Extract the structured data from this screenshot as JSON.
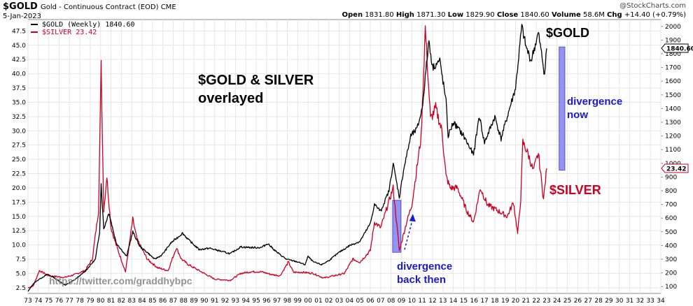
{
  "header": {
    "symbol": "$GOLD",
    "name": "Gold - Continuous Contract (EOD)",
    "exchange": "CME",
    "date": "5-Jan-2023",
    "open_label": "Open",
    "open": "1831.80",
    "high_label": "High",
    "high": "1871.30",
    "low_label": "Low",
    "low": "1829.90",
    "close_label": "Close",
    "close": "1840.60",
    "volume_label": "Volume",
    "volume": "58.6M",
    "chg_label": "Chg",
    "chg": "+14.40 (+0.79%)",
    "logo_text": "@StockCharts.com"
  },
  "legend": {
    "gold": "$GOLD (Weekly) 1840.60",
    "silver": "$SILVER 23.42"
  },
  "annotations": {
    "title_line1": "$GOLD & SILVER",
    "title_line2": "overlayed",
    "gold_tag": "$GOLD",
    "silver_tag": "$SILVER",
    "div_now_1": "divergence",
    "div_now_2": "now",
    "div_then_1": "divergence",
    "div_then_2": "back then",
    "watermark": "https://twitter.com/graddhybpc"
  },
  "colors": {
    "gold": "#000000",
    "silver": "#cc0022",
    "highlight": "#8080ee",
    "annotation_blue": "#1a1acc",
    "grid": "#e6e6e6"
  },
  "chart_data": {
    "type": "line",
    "title": "$GOLD & SILVER overlayed",
    "x_unit": "year",
    "x_ticks": [
      "73",
      "74",
      "75",
      "76",
      "77",
      "78",
      "79",
      "80",
      "81",
      "82",
      "83",
      "84",
      "85",
      "86",
      "87",
      "88",
      "89",
      "90",
      "91",
      "92",
      "93",
      "94",
      "95",
      "96",
      "97",
      "98",
      "99",
      "00",
      "01",
      "02",
      "03",
      "04",
      "05",
      "06",
      "07",
      "08",
      "09",
      "10",
      "11",
      "12",
      "13",
      "14",
      "15",
      "16",
      "17",
      "18",
      "19",
      "20",
      "21",
      "22",
      "23",
      "24",
      "25",
      "26",
      "27",
      "28",
      "29",
      "30",
      "31",
      "32",
      "33",
      "34"
    ],
    "x_range": [
      1973,
      2034
    ],
    "left_axis": {
      "series": "$SILVER",
      "ticks": [
        "2.5",
        "5.0",
        "7.5",
        "10.0",
        "12.5",
        "15.0",
        "17.5",
        "20.0",
        "22.5",
        "25.0",
        "27.5",
        "30.0",
        "32.5",
        "35.0",
        "37.5",
        "40.0",
        "42.5",
        "45.0",
        "47.5"
      ],
      "range": [
        1.5,
        49.5
      ]
    },
    "right_axis": {
      "series": "$GOLD",
      "ticks": [
        "100",
        "200",
        "300",
        "400",
        "500",
        "600",
        "700",
        "800",
        "900",
        "1000",
        "1100",
        "1200",
        "1300",
        "1400",
        "1500",
        "1600",
        "1700",
        "1800",
        "1900",
        "2000"
      ],
      "range": [
        50,
        2050
      ]
    },
    "grid": true,
    "last_values": {
      "gold": "1840.60",
      "silver": "23.42"
    },
    "series": [
      {
        "name": "$GOLD (Weekly)",
        "axis": "right",
        "points": [
          [
            1973.0,
            65
          ],
          [
            1973.5,
            120
          ],
          [
            1974.0,
            150
          ],
          [
            1974.9,
            190
          ],
          [
            1975.5,
            165
          ],
          [
            1976.6,
            110
          ],
          [
            1977.5,
            150
          ],
          [
            1978.5,
            210
          ],
          [
            1979.5,
            300
          ],
          [
            1979.9,
            500
          ],
          [
            1980.05,
            850
          ],
          [
            1980.3,
            520
          ],
          [
            1980.8,
            640
          ],
          [
            1981.5,
            420
          ],
          [
            1982.5,
            320
          ],
          [
            1983.1,
            500
          ],
          [
            1983.8,
            390
          ],
          [
            1984.5,
            350
          ],
          [
            1985.2,
            300
          ],
          [
            1985.9,
            330
          ],
          [
            1986.8,
            420
          ],
          [
            1987.9,
            490
          ],
          [
            1988.5,
            440
          ],
          [
            1989.5,
            370
          ],
          [
            1990.5,
            380
          ],
          [
            1991.5,
            360
          ],
          [
            1992.5,
            340
          ],
          [
            1993.5,
            390
          ],
          [
            1994.5,
            385
          ],
          [
            1995.5,
            385
          ],
          [
            1996.1,
            415
          ],
          [
            1997.0,
            350
          ],
          [
            1997.9,
            300
          ],
          [
            1999.0,
            280
          ],
          [
            1999.7,
            260
          ],
          [
            2000.0,
            320
          ],
          [
            2000.5,
            280
          ],
          [
            2001.3,
            260
          ],
          [
            2002.0,
            290
          ],
          [
            2003.0,
            350
          ],
          [
            2004.0,
            400
          ],
          [
            2005.0,
            430
          ],
          [
            2006.0,
            560
          ],
          [
            2006.4,
            700
          ],
          [
            2007.0,
            650
          ],
          [
            2007.8,
            800
          ],
          [
            2008.2,
            1000
          ],
          [
            2008.8,
            750
          ],
          [
            2009.2,
            950
          ],
          [
            2009.9,
            1200
          ],
          [
            2010.5,
            1250
          ],
          [
            2011.0,
            1400
          ],
          [
            2011.65,
            1900
          ],
          [
            2012.0,
            1700
          ],
          [
            2012.7,
            1750
          ],
          [
            2013.3,
            1450
          ],
          [
            2013.5,
            1200
          ],
          [
            2014.0,
            1300
          ],
          [
            2015.0,
            1200
          ],
          [
            2015.95,
            1060
          ],
          [
            2016.5,
            1350
          ],
          [
            2017.0,
            1150
          ],
          [
            2018.0,
            1340
          ],
          [
            2018.6,
            1180
          ],
          [
            2019.5,
            1420
          ],
          [
            2020.0,
            1550
          ],
          [
            2020.6,
            2000
          ],
          [
            2021.0,
            1850
          ],
          [
            2021.5,
            1750
          ],
          [
            2022.2,
            1950
          ],
          [
            2022.8,
            1650
          ],
          [
            2023.0,
            1840
          ]
        ]
      },
      {
        "name": "$SILVER",
        "axis": "left",
        "points": [
          [
            1973.0,
            2.5
          ],
          [
            1973.5,
            2.8
          ],
          [
            1974.1,
            5.5
          ],
          [
            1975.0,
            4.6
          ],
          [
            1976.5,
            4.3
          ],
          [
            1977.5,
            4.8
          ],
          [
            1978.5,
            5.5
          ],
          [
            1979.2,
            7.5
          ],
          [
            1979.8,
            16.0
          ],
          [
            1980.05,
            41.5
          ],
          [
            1980.3,
            16.0
          ],
          [
            1980.6,
            22.0
          ],
          [
            1981.0,
            13.0
          ],
          [
            1981.5,
            10.0
          ],
          [
            1982.4,
            5.3
          ],
          [
            1983.1,
            14.5
          ],
          [
            1983.5,
            11.0
          ],
          [
            1984.5,
            7.5
          ],
          [
            1985.5,
            6.0
          ],
          [
            1986.5,
            5.5
          ],
          [
            1987.3,
            9.5
          ],
          [
            1987.8,
            7.5
          ],
          [
            1988.5,
            6.5
          ],
          [
            1990.0,
            5.0
          ],
          [
            1991.0,
            4.0
          ],
          [
            1992.5,
            3.8
          ],
          [
            1993.5,
            5.0
          ],
          [
            1994.5,
            5.3
          ],
          [
            1995.5,
            5.3
          ],
          [
            1996.5,
            4.8
          ],
          [
            1997.3,
            4.6
          ],
          [
            1998.1,
            7.0
          ],
          [
            1998.6,
            5.2
          ],
          [
            1999.5,
            5.2
          ],
          [
            2000.5,
            5.0
          ],
          [
            2001.5,
            4.2
          ],
          [
            2002.5,
            4.6
          ],
          [
            2003.5,
            5.0
          ],
          [
            2004.3,
            7.5
          ],
          [
            2005.0,
            7.0
          ],
          [
            2006.0,
            9.0
          ],
          [
            2006.4,
            14.0
          ],
          [
            2007.0,
            13.0
          ],
          [
            2008.2,
            20.0
          ],
          [
            2008.8,
            9.0
          ],
          [
            2009.5,
            14.0
          ],
          [
            2010.0,
            17.0
          ],
          [
            2010.9,
            29.0
          ],
          [
            2011.3,
            48.0
          ],
          [
            2011.8,
            32.0
          ],
          [
            2012.3,
            34.0
          ],
          [
            2012.9,
            30.0
          ],
          [
            2013.3,
            22.0
          ],
          [
            2013.7,
            20.0
          ],
          [
            2014.4,
            20.0
          ],
          [
            2015.3,
            16.0
          ],
          [
            2015.95,
            14.0
          ],
          [
            2016.6,
            20.0
          ],
          [
            2017.3,
            17.0
          ],
          [
            2018.3,
            16.0
          ],
          [
            2019.2,
            15.0
          ],
          [
            2019.8,
            17.5
          ],
          [
            2020.2,
            12.0
          ],
          [
            2020.5,
            18.0
          ],
          [
            2020.7,
            28.0
          ],
          [
            2021.2,
            26.0
          ],
          [
            2021.7,
            23.0
          ],
          [
            2022.2,
            26.0
          ],
          [
            2022.7,
            18.0
          ],
          [
            2023.0,
            23.42
          ]
        ]
      }
    ]
  }
}
